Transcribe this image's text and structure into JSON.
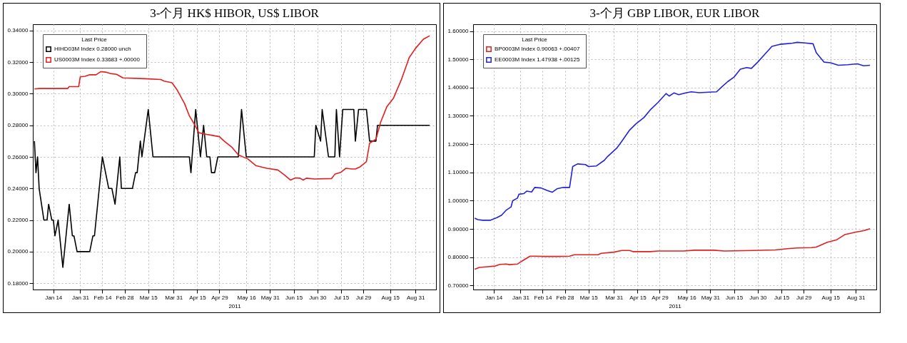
{
  "chart_data": [
    {
      "type": "line",
      "title": "3-个月  HK$ HIBOR, US$ LIBOR",
      "xlabel": "2011",
      "legend_title": "Last Price",
      "legend": "top left",
      "grid": true,
      "xlim": [
        "2011-01-01",
        "2011-09-13"
      ],
      "xticks": [
        {
          "value": "2011-01-14",
          "label": "Jan 14"
        },
        {
          "value": "2011-01-31",
          "label": "Jan 31"
        },
        {
          "value": "2011-02-14",
          "label": "Feb 14"
        },
        {
          "value": "2011-02-28",
          "label": "Feb 28"
        },
        {
          "value": "2011-03-15",
          "label": "Mar 15"
        },
        {
          "value": "2011-03-31",
          "label": "Mar 31"
        },
        {
          "value": "2011-04-15",
          "label": "Apr 15"
        },
        {
          "value": "2011-04-29",
          "label": "Apr 29"
        },
        {
          "value": "2011-05-16",
          "label": "May 16"
        },
        {
          "value": "2011-05-31",
          "label": "May 31"
        },
        {
          "value": "2011-06-15",
          "label": "Jun 15"
        },
        {
          "value": "2011-06-30",
          "label": "Jun 30"
        },
        {
          "value": "2011-07-15",
          "label": "Jul 15"
        },
        {
          "value": "2011-07-29",
          "label": "Jul 29"
        },
        {
          "value": "2011-08-15",
          "label": "Aug 15"
        },
        {
          "value": "2011-08-31",
          "label": "Aug 31"
        }
      ],
      "ylim": [
        0.176,
        0.344
      ],
      "yticks": [
        {
          "value": 0.18,
          "label": "0.18000"
        },
        {
          "value": 0.2,
          "label": "0.20000"
        },
        {
          "value": 0.22,
          "label": "0.22000"
        },
        {
          "value": 0.24,
          "label": "0.24000"
        },
        {
          "value": 0.26,
          "label": "0.26000"
        },
        {
          "value": 0.28,
          "label": "0.28000"
        },
        {
          "value": 0.3,
          "label": "0.30000"
        },
        {
          "value": 0.32,
          "label": "0.32000"
        },
        {
          "value": 0.34,
          "label": "0.34000"
        }
      ],
      "series": [
        {
          "name": "HIHD03M Index  0.28000  unch",
          "color": "#000000",
          "x": [
            "2011-01-02",
            "2011-01-03",
            "2011-01-04",
            "2011-01-05",
            "2011-01-08",
            "2011-01-10",
            "2011-01-11",
            "2011-01-13",
            "2011-01-14",
            "2011-01-15",
            "2011-01-17",
            "2011-01-20",
            "2011-01-22",
            "2011-01-24",
            "2011-01-26",
            "2011-01-27",
            "2011-01-29",
            "2011-02-06",
            "2011-02-08",
            "2011-02-09",
            "2011-02-12",
            "2011-02-14",
            "2011-02-18",
            "2011-02-20",
            "2011-02-22",
            "2011-02-25",
            "2011-02-26",
            "2011-03-05",
            "2011-03-07",
            "2011-03-08",
            "2011-03-10",
            "2011-03-11",
            "2011-03-15",
            "2011-03-18",
            "2011-04-10",
            "2011-04-11",
            "2011-04-14",
            "2011-04-17",
            "2011-04-19",
            "2011-04-21",
            "2011-04-23",
            "2011-04-24",
            "2011-04-26",
            "2011-04-28",
            "2011-05-11",
            "2011-05-13",
            "2011-05-16",
            "2011-06-28",
            "2011-06-29",
            "2011-07-02",
            "2011-07-03",
            "2011-07-07",
            "2011-07-11",
            "2011-07-12",
            "2011-07-14",
            "2011-07-16",
            "2011-07-23",
            "2011-07-24",
            "2011-07-26",
            "2011-07-31",
            "2011-08-02",
            "2011-08-06",
            "2011-08-07",
            "2011-09-09"
          ],
          "values": [
            0.27,
            0.25,
            0.26,
            0.24,
            0.22,
            0.22,
            0.23,
            0.22,
            0.22,
            0.21,
            0.22,
            0.19,
            0.21,
            0.23,
            0.21,
            0.21,
            0.2,
            0.2,
            0.21,
            0.21,
            0.24,
            0.26,
            0.24,
            0.24,
            0.23,
            0.26,
            0.24,
            0.24,
            0.25,
            0.25,
            0.27,
            0.26,
            0.29,
            0.26,
            0.26,
            0.25,
            0.29,
            0.26,
            0.28,
            0.26,
            0.26,
            0.25,
            0.25,
            0.26,
            0.26,
            0.29,
            0.26,
            0.26,
            0.28,
            0.27,
            0.29,
            0.26,
            0.26,
            0.29,
            0.26,
            0.29,
            0.29,
            0.27,
            0.29,
            0.29,
            0.27,
            0.27,
            0.28,
            0.28
          ]
        },
        {
          "name": "US0003M Index  0.33683  +.00000",
          "color": "#e41e1e",
          "x": [
            "2011-01-02",
            "2011-01-05",
            "2011-01-23",
            "2011-01-24",
            "2011-01-30",
            "2011-01-31",
            "2011-02-03",
            "2011-02-06",
            "2011-02-10",
            "2011-02-13",
            "2011-02-16",
            "2011-02-19",
            "2011-02-23",
            "2011-02-27",
            "2011-03-13",
            "2011-03-23",
            "2011-03-25",
            "2011-03-30",
            "2011-04-02",
            "2011-04-07",
            "2011-04-10",
            "2011-04-13",
            "2011-04-16",
            "2011-04-21",
            "2011-04-24",
            "2011-04-29",
            "2011-05-02",
            "2011-05-07",
            "2011-05-11",
            "2011-05-17",
            "2011-05-22",
            "2011-05-29",
            "2011-06-05",
            "2011-06-09",
            "2011-06-13",
            "2011-06-16",
            "2011-06-19",
            "2011-06-21",
            "2011-06-23",
            "2011-06-28",
            "2011-07-09",
            "2011-07-11",
            "2011-07-15",
            "2011-07-18",
            "2011-07-22",
            "2011-07-24",
            "2011-07-27",
            "2011-07-31",
            "2011-08-02",
            "2011-08-06",
            "2011-08-09",
            "2011-08-13",
            "2011-08-17",
            "2011-08-22",
            "2011-08-27",
            "2011-08-31",
            "2011-09-05",
            "2011-09-09"
          ],
          "values": [
            0.303,
            0.3033,
            0.3033,
            0.3045,
            0.3045,
            0.3107,
            0.311,
            0.312,
            0.312,
            0.314,
            0.3137,
            0.3128,
            0.3123,
            0.31,
            0.3095,
            0.309,
            0.308,
            0.307,
            0.3028,
            0.2937,
            0.286,
            0.281,
            0.2753,
            0.2742,
            0.2737,
            0.2728,
            0.27,
            0.266,
            0.2612,
            0.2587,
            0.2545,
            0.2528,
            0.2517,
            0.2487,
            0.2453,
            0.2467,
            0.2465,
            0.2453,
            0.2465,
            0.246,
            0.2463,
            0.249,
            0.2503,
            0.2528,
            0.2523,
            0.2523,
            0.2537,
            0.257,
            0.2687,
            0.2712,
            0.282,
            0.292,
            0.297,
            0.3087,
            0.3228,
            0.3287,
            0.3345,
            0.3367
          ]
        }
      ]
    },
    {
      "type": "line",
      "title": "3-个月  GBP LIBOR, EUR LIBOR",
      "xlabel": "2011",
      "legend_title": "Last Price",
      "legend": "top left",
      "grid": true,
      "xlim": [
        "2011-01-01",
        "2011-09-13"
      ],
      "xticks": [
        {
          "value": "2011-01-14",
          "label": "Jan 14"
        },
        {
          "value": "2011-01-31",
          "label": "Jan 31"
        },
        {
          "value": "2011-02-14",
          "label": "Feb 14"
        },
        {
          "value": "2011-02-28",
          "label": "Feb 28"
        },
        {
          "value": "2011-03-15",
          "label": "Mar 15"
        },
        {
          "value": "2011-03-31",
          "label": "Mar 31"
        },
        {
          "value": "2011-04-15",
          "label": "Apr 15"
        },
        {
          "value": "2011-04-29",
          "label": "Apr 29"
        },
        {
          "value": "2011-05-16",
          "label": "May 16"
        },
        {
          "value": "2011-05-31",
          "label": "May 31"
        },
        {
          "value": "2011-06-15",
          "label": "Jun 15"
        },
        {
          "value": "2011-06-30",
          "label": "Jun 30"
        },
        {
          "value": "2011-07-15",
          "label": "Jul 15"
        },
        {
          "value": "2011-07-29",
          "label": "Jul 29"
        },
        {
          "value": "2011-08-15",
          "label": "Aug 15"
        },
        {
          "value": "2011-08-31",
          "label": "Aug 31"
        }
      ],
      "ylim": [
        0.686,
        1.624
      ],
      "yticks": [
        {
          "value": 0.7,
          "label": "0.70000"
        },
        {
          "value": 0.8,
          "label": "0.80000"
        },
        {
          "value": 0.9,
          "label": "0.90000"
        },
        {
          "value": 1.0,
          "label": "1.00000"
        },
        {
          "value": 1.1,
          "label": "1.10000"
        },
        {
          "value": 1.2,
          "label": "1.20000"
        },
        {
          "value": 1.3,
          "label": "1.30000"
        },
        {
          "value": 1.4,
          "label": "1.40000"
        },
        {
          "value": 1.5,
          "label": "1.50000"
        },
        {
          "value": 1.6,
          "label": "1.60000"
        }
      ],
      "series": [
        {
          "name": "BP0003M Index  0.90063  +.00407",
          "color": "#e41e1e",
          "x": [
            "2011-01-02",
            "2011-01-05",
            "2011-01-09",
            "2011-01-15",
            "2011-01-18",
            "2011-01-22",
            "2011-01-24",
            "2011-01-29",
            "2011-02-01",
            "2011-02-06",
            "2011-02-09",
            "2011-02-15",
            "2011-02-24",
            "2011-03-03",
            "2011-03-06",
            "2011-03-10",
            "2011-03-17",
            "2011-03-21",
            "2011-03-23",
            "2011-03-31",
            "2011-04-05",
            "2011-04-10",
            "2011-04-12",
            "2011-04-23",
            "2011-04-28",
            "2011-05-14",
            "2011-05-21",
            "2011-06-02",
            "2011-06-09",
            "2011-06-27",
            "2011-07-11",
            "2011-07-20",
            "2011-07-25",
            "2011-08-03",
            "2011-08-06",
            "2011-08-13",
            "2011-08-19",
            "2011-08-24",
            "2011-08-31",
            "2011-09-05",
            "2011-09-09"
          ],
          "values": [
            0.758,
            0.764,
            0.766,
            0.769,
            0.775,
            0.776,
            0.774,
            0.776,
            0.787,
            0.804,
            0.804,
            0.803,
            0.803,
            0.804,
            0.809,
            0.809,
            0.809,
            0.809,
            0.814,
            0.818,
            0.824,
            0.824,
            0.82,
            0.82,
            0.822,
            0.822,
            0.825,
            0.825,
            0.822,
            0.824,
            0.826,
            0.831,
            0.833,
            0.834,
            0.836,
            0.853,
            0.862,
            0.88,
            0.889,
            0.894,
            0.901
          ]
        },
        {
          "name": "EE0003M Index  1.47938  +.00125",
          "color": "#2222dd",
          "x": [
            "2011-01-02",
            "2011-01-04",
            "2011-01-07",
            "2011-01-12",
            "2011-01-16",
            "2011-01-19",
            "2011-01-22",
            "2011-01-25",
            "2011-01-26",
            "2011-01-29",
            "2011-01-30",
            "2011-02-02",
            "2011-02-04",
            "2011-02-07",
            "2011-02-09",
            "2011-02-13",
            "2011-02-17",
            "2011-02-20",
            "2011-02-23",
            "2011-02-27",
            "2011-03-03",
            "2011-03-05",
            "2011-03-08",
            "2011-03-13",
            "2011-03-15",
            "2011-03-20",
            "2011-03-25",
            "2011-03-27",
            "2011-04-02",
            "2011-04-05",
            "2011-04-10",
            "2011-04-14",
            "2011-04-19",
            "2011-04-23",
            "2011-04-28",
            "2011-05-03",
            "2011-05-05",
            "2011-05-08",
            "2011-05-11",
            "2011-05-16",
            "2011-05-19",
            "2011-05-24",
            "2011-05-30",
            "2011-06-04",
            "2011-06-07",
            "2011-06-11",
            "2011-06-15",
            "2011-06-19",
            "2011-06-23",
            "2011-06-26",
            "2011-06-30",
            "2011-07-04",
            "2011-07-09",
            "2011-07-14",
            "2011-07-18",
            "2011-07-22",
            "2011-07-25",
            "2011-07-30",
            "2011-08-04",
            "2011-08-06",
            "2011-08-08",
            "2011-08-11",
            "2011-08-15",
            "2011-08-20",
            "2011-08-26",
            "2011-09-01",
            "2011-09-05",
            "2011-09-09"
          ],
          "values": [
            0.938,
            0.933,
            0.931,
            0.931,
            0.94,
            0.949,
            0.967,
            0.978,
            1.0,
            1.009,
            1.023,
            1.025,
            1.034,
            1.031,
            1.047,
            1.045,
            1.036,
            1.03,
            1.042,
            1.047,
            1.047,
            1.121,
            1.13,
            1.128,
            1.121,
            1.123,
            1.143,
            1.156,
            1.187,
            1.21,
            1.25,
            1.272,
            1.294,
            1.321,
            1.348,
            1.379,
            1.37,
            1.381,
            1.375,
            1.382,
            1.385,
            1.382,
            1.384,
            1.385,
            1.401,
            1.421,
            1.437,
            1.465,
            1.471,
            1.468,
            1.49,
            1.515,
            1.546,
            1.553,
            1.555,
            1.557,
            1.56,
            1.558,
            1.555,
            1.524,
            1.51,
            1.49,
            1.488,
            1.479,
            1.481,
            1.484,
            1.477,
            1.479
          ]
        }
      ]
    }
  ]
}
